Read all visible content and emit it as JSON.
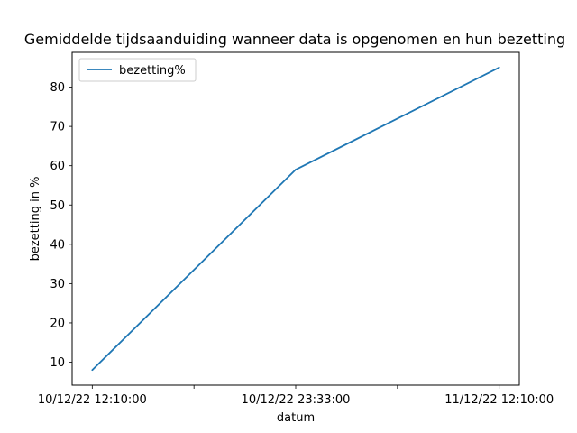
{
  "chart_data": {
    "type": "line",
    "title": "Gemiddelde tijdsaanduiding wanneer data is opgenomen en hun bezetting",
    "xlabel": "datum",
    "ylabel": "bezetting in %",
    "x": [
      "10/12/22 12:10:00",
      "10/12/22 23:33:00",
      "11/12/22 12:10:00"
    ],
    "x_tick_labels": [
      "10/12/22 12:10:00",
      "",
      "10/12/22 23:33:00",
      "",
      "11/12/22 12:10:00"
    ],
    "series": [
      {
        "name": "bezetting%",
        "values": [
          8,
          59,
          85
        ],
        "color": "#1f77b4"
      }
    ],
    "y_ticks": [
      10,
      20,
      30,
      40,
      50,
      60,
      70,
      80
    ],
    "ylim": [
      4.15,
      88.85
    ],
    "grid": false,
    "legend_position": "top-left"
  }
}
